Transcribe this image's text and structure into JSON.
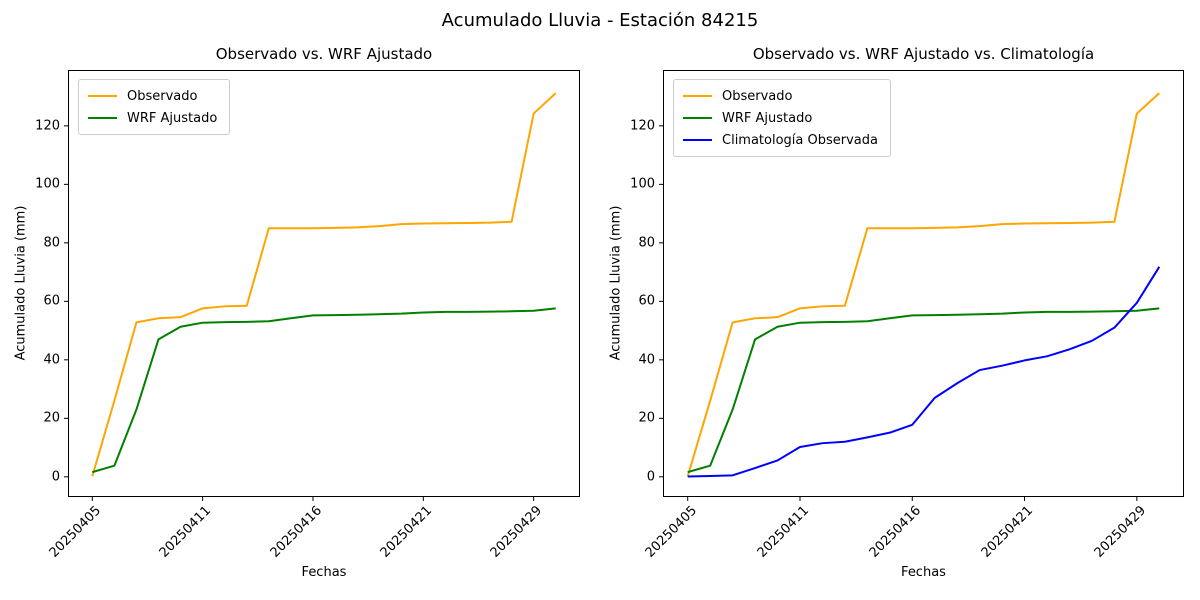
{
  "figure": {
    "suptitle": "Acumulado Lluvia - Estación 84215",
    "background_color": "#ffffff",
    "text_color": "#000000"
  },
  "chart_data": [
    {
      "type": "line",
      "title": "Observado vs. WRF Ajustado",
      "xlabel": "Fechas",
      "ylabel": "Acumulado Lluvia (mm)",
      "grid": false,
      "legend_position": "upper left",
      "x": [
        0,
        1,
        2,
        3,
        4,
        5,
        6,
        7,
        8,
        9,
        10,
        11,
        12,
        13,
        14,
        15,
        16,
        17,
        18,
        19,
        20,
        21
      ],
      "xtick_positions": [
        0,
        5,
        10,
        15,
        20
      ],
      "xtick_labels": [
        "20250405",
        "20250411",
        "20250416",
        "20250421",
        "20250429"
      ],
      "xtick_rotation": 45,
      "ytick_values": [
        0,
        20,
        40,
        60,
        80,
        100,
        120
      ],
      "xlim": [
        -1.1,
        22.1
      ],
      "ylim": [
        -6.9,
        139.1
      ],
      "series": [
        {
          "name": "Observado",
          "color": "#ffa500",
          "values": [
            0.2,
            26.0,
            52.8,
            54.2,
            54.6,
            57.6,
            58.3,
            58.5,
            85.0,
            85.0,
            85.0,
            85.1,
            85.3,
            85.7,
            86.4,
            86.6,
            86.7,
            86.8,
            86.9,
            87.2,
            124.2,
            131.2
          ]
        },
        {
          "name": "WRF Ajustado",
          "color": "#008000",
          "values": [
            1.6,
            3.8,
            23.0,
            47.0,
            51.3,
            52.7,
            52.9,
            53.0,
            53.2,
            54.2,
            55.2,
            55.3,
            55.4,
            55.6,
            55.8,
            56.2,
            56.4,
            56.4,
            56.5,
            56.6,
            56.8,
            57.6
          ]
        }
      ]
    },
    {
      "type": "line",
      "title": "Observado vs. WRF Ajustado vs. Climatología",
      "xlabel": "Fechas",
      "ylabel": "Acumulado Lluvia (mm)",
      "grid": false,
      "legend_position": "upper left",
      "x": [
        0,
        1,
        2,
        3,
        4,
        5,
        6,
        7,
        8,
        9,
        10,
        11,
        12,
        13,
        14,
        15,
        16,
        17,
        18,
        19,
        20,
        21
      ],
      "xtick_positions": [
        0,
        5,
        10,
        15,
        20
      ],
      "xtick_labels": [
        "20250405",
        "20250411",
        "20250416",
        "20250421",
        "20250429"
      ],
      "xtick_rotation": 45,
      "ytick_values": [
        0,
        20,
        40,
        60,
        80,
        100,
        120
      ],
      "xlim": [
        -1.1,
        22.1
      ],
      "ylim": [
        -6.9,
        139.1
      ],
      "series": [
        {
          "name": "Observado",
          "color": "#ffa500",
          "values": [
            0.2,
            26.0,
            52.8,
            54.2,
            54.6,
            57.6,
            58.3,
            58.5,
            85.0,
            85.0,
            85.0,
            85.1,
            85.3,
            85.7,
            86.4,
            86.6,
            86.7,
            86.8,
            86.9,
            87.2,
            124.2,
            131.2
          ]
        },
        {
          "name": "WRF Ajustado",
          "color": "#008000",
          "values": [
            1.6,
            3.8,
            23.0,
            47.0,
            51.3,
            52.7,
            52.9,
            53.0,
            53.2,
            54.2,
            55.2,
            55.3,
            55.4,
            55.6,
            55.8,
            56.2,
            56.4,
            56.4,
            56.5,
            56.6,
            56.8,
            57.6
          ]
        },
        {
          "name": "Climatología Observada",
          "color": "#0000ff",
          "values": [
            0.1,
            0.3,
            0.5,
            3.0,
            5.6,
            10.2,
            11.5,
            12.0,
            13.5,
            15.1,
            17.8,
            27.0,
            32.0,
            36.5,
            38.0,
            39.8,
            41.2,
            43.6,
            46.5,
            51.0,
            59.5,
            71.8
          ]
        }
      ]
    }
  ]
}
